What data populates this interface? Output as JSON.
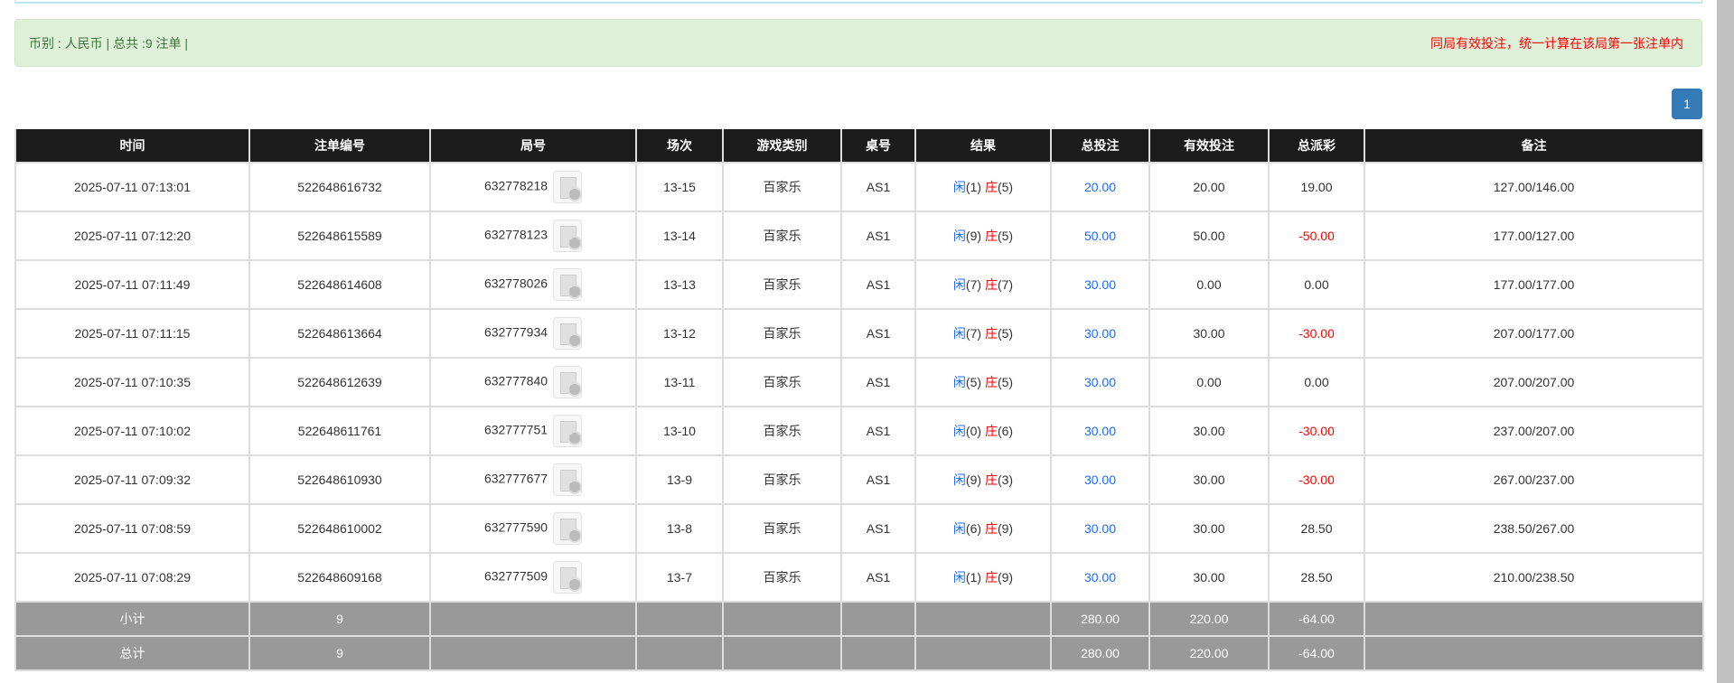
{
  "summary": {
    "left": "币别 : 人民币 | 总共 :9 注单 |",
    "note": "同局有效投注，统一计算在该局第一张注单内"
  },
  "pagination": {
    "current": "1"
  },
  "colors": {
    "accent": "#337ab7",
    "blue": "#1a6cff",
    "red": "#ff0000",
    "header": "#1c1c1c",
    "summary_row": "#999999"
  },
  "table": {
    "headers": [
      "时间",
      "注单编号",
      "局号",
      "场次",
      "游戏类别",
      "桌号",
      "结果",
      "总投注",
      "有效投注",
      "总派彩",
      "备注"
    ],
    "rows": [
      {
        "time": "2025-07-11 07:13:01",
        "bet_id": "522648616732",
        "round": "632778218",
        "shoe": "13-15",
        "game": "百家乐",
        "table": "AS1",
        "player": "闲",
        "player_pts": "(1)",
        "banker": "庄",
        "banker_pts": "(5)",
        "total": "20.00",
        "valid": "20.00",
        "payout": "19.00",
        "payout_neg": false,
        "remark": "127.00/146.00"
      },
      {
        "time": "2025-07-11 07:12:20",
        "bet_id": "522648615589",
        "round": "632778123",
        "shoe": "13-14",
        "game": "百家乐",
        "table": "AS1",
        "player": "闲",
        "player_pts": "(9)",
        "banker": "庄",
        "banker_pts": "(5)",
        "total": "50.00",
        "valid": "50.00",
        "payout": "-50.00",
        "payout_neg": true,
        "remark": "177.00/127.00"
      },
      {
        "time": "2025-07-11 07:11:49",
        "bet_id": "522648614608",
        "round": "632778026",
        "shoe": "13-13",
        "game": "百家乐",
        "table": "AS1",
        "player": "闲",
        "player_pts": "(7)",
        "banker": "庄",
        "banker_pts": "(7)",
        "total": "30.00",
        "valid": "0.00",
        "payout": "0.00",
        "payout_neg": false,
        "remark": "177.00/177.00"
      },
      {
        "time": "2025-07-11 07:11:15",
        "bet_id": "522648613664",
        "round": "632777934",
        "shoe": "13-12",
        "game": "百家乐",
        "table": "AS1",
        "player": "闲",
        "player_pts": "(7)",
        "banker": "庄",
        "banker_pts": "(5)",
        "total": "30.00",
        "valid": "30.00",
        "payout": "-30.00",
        "payout_neg": true,
        "remark": "207.00/177.00"
      },
      {
        "time": "2025-07-11 07:10:35",
        "bet_id": "522648612639",
        "round": "632777840",
        "shoe": "13-11",
        "game": "百家乐",
        "table": "AS1",
        "player": "闲",
        "player_pts": "(5)",
        "banker": "庄",
        "banker_pts": "(5)",
        "total": "30.00",
        "valid": "0.00",
        "payout": "0.00",
        "payout_neg": false,
        "remark": "207.00/207.00"
      },
      {
        "time": "2025-07-11 07:10:02",
        "bet_id": "522648611761",
        "round": "632777751",
        "shoe": "13-10",
        "game": "百家乐",
        "table": "AS1",
        "player": "闲",
        "player_pts": "(0)",
        "banker": "庄",
        "banker_pts": "(6)",
        "total": "30.00",
        "valid": "30.00",
        "payout": "-30.00",
        "payout_neg": true,
        "remark": "237.00/207.00"
      },
      {
        "time": "2025-07-11 07:09:32",
        "bet_id": "522648610930",
        "round": "632777677",
        "shoe": "13-9",
        "game": "百家乐",
        "table": "AS1",
        "player": "闲",
        "player_pts": "(9)",
        "banker": "庄",
        "banker_pts": "(3)",
        "total": "30.00",
        "valid": "30.00",
        "payout": "-30.00",
        "payout_neg": true,
        "remark": "267.00/237.00"
      },
      {
        "time": "2025-07-11 07:08:59",
        "bet_id": "522648610002",
        "round": "632777590",
        "shoe": "13-8",
        "game": "百家乐",
        "table": "AS1",
        "player": "闲",
        "player_pts": "(6)",
        "banker": "庄",
        "banker_pts": "(9)",
        "total": "30.00",
        "valid": "30.00",
        "payout": "28.50",
        "payout_neg": false,
        "remark": "238.50/267.00"
      },
      {
        "time": "2025-07-11 07:08:29",
        "bet_id": "522648609168",
        "round": "632777509",
        "shoe": "13-7",
        "game": "百家乐",
        "table": "AS1",
        "player": "闲",
        "player_pts": "(1)",
        "banker": "庄",
        "banker_pts": "(9)",
        "total": "30.00",
        "valid": "30.00",
        "payout": "28.50",
        "payout_neg": false,
        "remark": "210.00/238.50"
      }
    ],
    "summary_rows": [
      {
        "label": "小计",
        "count": "9",
        "total": "280.00",
        "valid": "220.00",
        "payout": "-64.00"
      },
      {
        "label": "总计",
        "count": "9",
        "total": "280.00",
        "valid": "220.00",
        "payout": "-64.00"
      }
    ]
  }
}
